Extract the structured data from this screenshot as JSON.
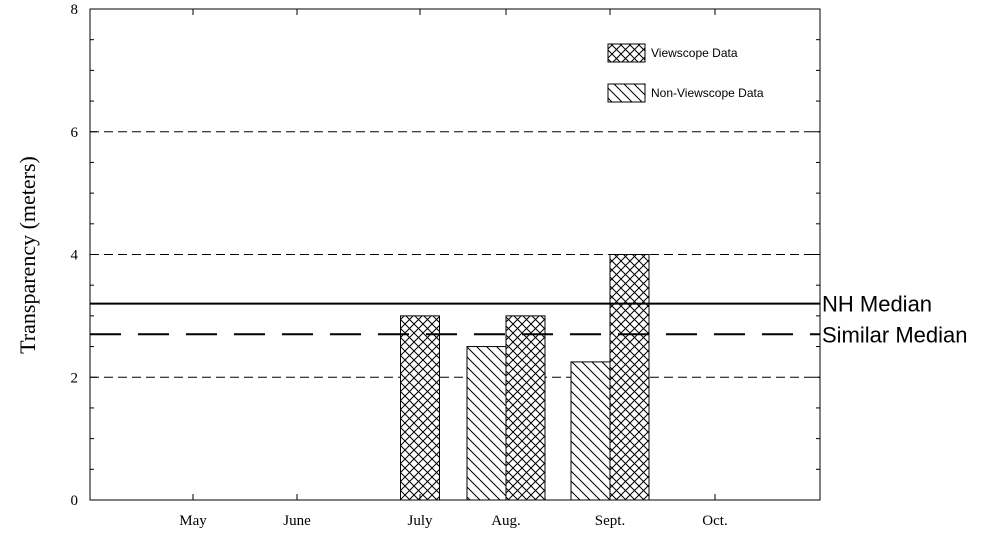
{
  "chart_data": {
    "type": "bar",
    "title": "",
    "xlabel": "",
    "ylabel": "Transparency (meters)",
    "ylim": [
      0,
      8
    ],
    "y_ticks": [
      0,
      2,
      4,
      6,
      8
    ],
    "y_tick_labels": [
      "0",
      "2",
      "4",
      "6",
      "8"
    ],
    "categories": [
      "May",
      "June",
      "July",
      "Aug.",
      "Sept.",
      "Oct."
    ],
    "series": [
      {
        "name": "Non-Viewscope Data",
        "pattern": "diagonal-hatch",
        "values": [
          null,
          null,
          null,
          2.5,
          2.25,
          null
        ]
      },
      {
        "name": "Viewscope Data",
        "pattern": "cross-hatch",
        "values": [
          null,
          null,
          3.0,
          3.0,
          4.0,
          null
        ]
      }
    ],
    "reference_lines": [
      {
        "label": "NH Median",
        "value": 3.2,
        "style": "solid"
      },
      {
        "label": "Similar Median",
        "value": 2.7,
        "style": "long-dash"
      }
    ],
    "gridlines": {
      "y": [
        2,
        4,
        6
      ],
      "style": "dashed"
    },
    "legend": {
      "position": "top-right"
    }
  }
}
